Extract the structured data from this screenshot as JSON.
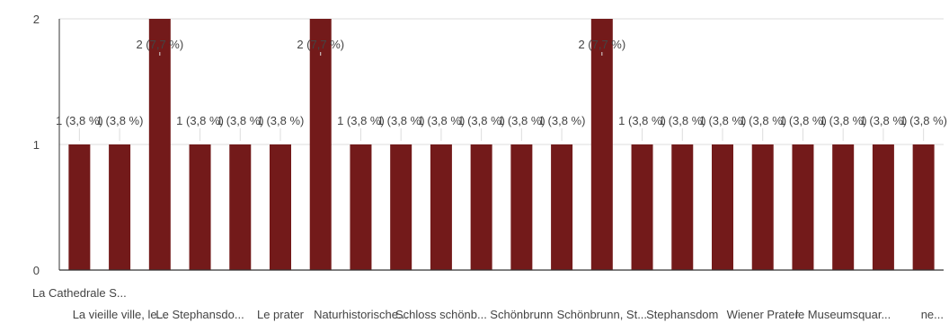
{
  "chart_data": {
    "type": "bar",
    "title": "",
    "xlabel": "",
    "ylabel": "",
    "ylim": [
      0,
      2
    ],
    "yticks": [
      0,
      1,
      2
    ],
    "grid": true,
    "legend": "none",
    "colors": {
      "bar": "#731a1a",
      "axis": "#333333",
      "grid": "#dddddd",
      "text": "#444444"
    },
    "categories": [
      "La Cathedrale S...",
      "La vieille ville, le...",
      "",
      "Le Stephansdo...",
      "",
      "Le prater",
      "",
      "Naturhistorische...",
      "",
      "Schloss schönb...",
      "",
      "Schönbrunn",
      "",
      "Schönbrunn, St...",
      "",
      "Stephansdom",
      "",
      "Wiener Prater",
      "",
      "le Museumsquar...",
      "",
      "ne..."
    ],
    "values": [
      1,
      1,
      2,
      1,
      1,
      1,
      2,
      1,
      1,
      1,
      1,
      1,
      1,
      2,
      1,
      1,
      1,
      1,
      1,
      1,
      1,
      1
    ],
    "value_labels": [
      "1 (3,8 %)",
      "1 (3,8 %)",
      "2 (7,7 %)",
      "1 (3,8 %)",
      "1 (3,8 %)",
      "1 (3,8 %)",
      "2 (7,7 %)",
      "1 (3,8 %)",
      "1 (3,8 %)",
      "1 (3,8 %)",
      "1 (3,8 %)",
      "1 (3,8 %)",
      "1 (3,8 %)",
      "2 (7,7 %)",
      "1 (3,8 %)",
      "1 (3,8 %)",
      "1 (3,8 %)",
      "1 (3,8 %)",
      "1 (3,8 %)",
      "1 (3,8 %)",
      "1 (3,8 %)",
      "1 (3,8 %)"
    ]
  }
}
